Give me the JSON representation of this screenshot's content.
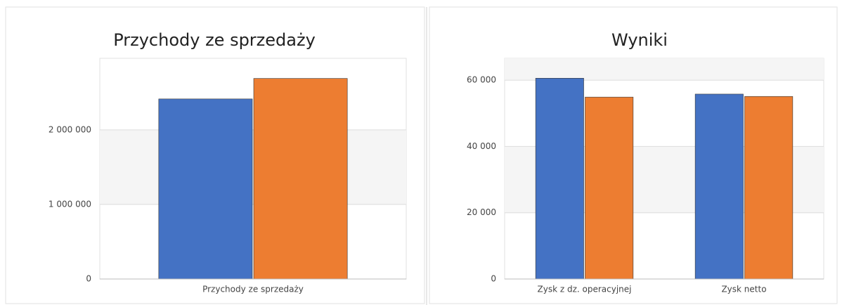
{
  "chart_data": [
    {
      "type": "bar",
      "title": "Przychody ze sprzedaży",
      "categories": [
        "Przychody ze sprzedaży"
      ],
      "series": [
        {
          "color": "#4472c4",
          "values": [
            2415000
          ]
        },
        {
          "color": "#ed7d31",
          "values": [
            2690000
          ]
        }
      ],
      "ylim": [
        0,
        2960000
      ],
      "yticks": [
        0,
        {
          "value": 1000000,
          "label": "1 000 000"
        },
        {
          "value": 2000000,
          "label": "2 000 000"
        }
      ],
      "grid": true
    },
    {
      "type": "bar",
      "title": "Wyniki",
      "categories": [
        "Zysk z dz. operacyjnej",
        "Zysk netto"
      ],
      "series": [
        {
          "color": "#4472c4",
          "values": [
            60600,
            55800
          ]
        },
        {
          "color": "#ed7d31",
          "values": [
            54900,
            55100
          ]
        }
      ],
      "ylim": [
        0,
        66600
      ],
      "yticks": [
        0,
        {
          "value": 20000,
          "label": "20 000"
        },
        {
          "value": 40000,
          "label": "40 000"
        },
        {
          "value": 60000,
          "label": "60 000"
        }
      ],
      "grid": true
    }
  ]
}
